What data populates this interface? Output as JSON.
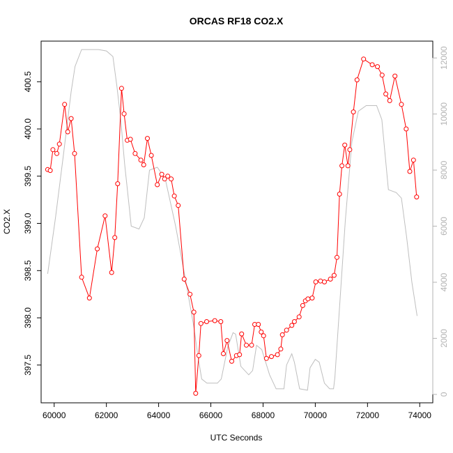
{
  "chart_data": {
    "type": "line",
    "title": "ORCAS RF18 CO2.X",
    "xlabel": "UTC Seconds",
    "ylabel": "CO2.X",
    "xlim": [
      59500,
      74500
    ],
    "ylim": [
      397.1,
      400.93
    ],
    "y2lim": [
      -300,
      12600
    ],
    "x_ticks": [
      60000,
      62000,
      64000,
      66000,
      68000,
      70000,
      72000,
      74000
    ],
    "x_tick_labels": [
      "60000",
      "62000",
      "64000",
      "66000",
      "68000",
      "70000",
      "72000",
      "74000"
    ],
    "y_ticks": [
      397.5,
      398.0,
      398.5,
      399.0,
      399.5,
      400.0,
      400.5
    ],
    "y_tick_labels": [
      "397.5",
      "398.0",
      "398.5",
      "399.0",
      "399.5",
      "400.0",
      "400.5"
    ],
    "y2_ticks": [
      0,
      2000,
      4000,
      6000,
      8000,
      10000,
      12000
    ],
    "y2_tick_labels": [
      "0",
      "2000",
      "4000",
      "6000",
      "8000",
      "10000",
      "12000"
    ],
    "grid": false,
    "legend": "none",
    "colors": {
      "primary": "#ff0000",
      "secondary": "#bebebe",
      "axes": "#000000",
      "right_axis": "#b3b3b3"
    },
    "series": [
      {
        "axis": "left",
        "style": "line+points",
        "color": "#ff0000",
        "x": [
          59750,
          59850,
          59950,
          60100,
          60200,
          60400,
          60520,
          60650,
          60780,
          61050,
          61350,
          61650,
          61950,
          62200,
          62320,
          62430,
          62580,
          62680,
          62800,
          62920,
          63100,
          63320,
          63430,
          63570,
          63720,
          63950,
          64120,
          64230,
          64350,
          64480,
          64600,
          64750,
          64980,
          65200,
          65350,
          65420,
          65540,
          65620,
          65840,
          66150,
          66380,
          66480,
          66620,
          66800,
          66980,
          67100,
          67180,
          67360,
          67560,
          67680,
          67820,
          67930,
          68020,
          68130,
          68320,
          68550,
          68680,
          68740,
          68900,
          69100,
          69200,
          69380,
          69520,
          69620,
          69720,
          69880,
          70020,
          70200,
          70350,
          70580,
          70720,
          70830,
          70930,
          71020,
          71130,
          71250,
          71320,
          71460,
          71600,
          71850,
          72180,
          72380,
          72560,
          72700,
          72850,
          73050,
          73300,
          73480,
          73620,
          73760,
          73880
        ],
        "y": [
          399.57,
          399.56,
          399.78,
          399.74,
          399.84,
          400.26,
          399.97,
          400.11,
          399.74,
          398.43,
          398.21,
          398.73,
          399.08,
          398.48,
          398.85,
          399.42,
          400.43,
          400.16,
          399.88,
          399.89,
          399.74,
          399.67,
          399.62,
          399.9,
          399.72,
          399.41,
          399.52,
          399.47,
          399.5,
          399.47,
          399.29,
          399.19,
          398.41,
          398.25,
          398.06,
          397.2,
          397.6,
          397.94,
          397.96,
          397.97,
          397.96,
          397.62,
          397.76,
          397.54,
          397.6,
          397.61,
          397.83,
          397.71,
          397.71,
          397.93,
          397.93,
          397.85,
          397.81,
          397.57,
          397.59,
          397.61,
          397.67,
          397.82,
          397.87,
          397.92,
          397.96,
          398.01,
          398.13,
          398.18,
          398.2,
          398.21,
          398.38,
          398.39,
          398.38,
          398.41,
          398.45,
          398.64,
          399.31,
          399.61,
          399.83,
          399.61,
          399.78,
          400.18,
          400.52,
          400.74,
          400.68,
          400.66,
          400.57,
          400.37,
          400.3,
          400.56,
          400.26,
          400.0,
          399.55,
          399.67,
          399.28
        ]
      },
      {
        "axis": "right",
        "style": "line",
        "color": "#bebebe",
        "x": [
          59750,
          60050,
          60350,
          60650,
          60800,
          61050,
          61400,
          61700,
          62000,
          62250,
          62400,
          62550,
          62700,
          62850,
          62950,
          63250,
          63450,
          63650,
          63950,
          64250,
          64650,
          65050,
          65350,
          65500,
          65650,
          65850,
          66050,
          66250,
          66400,
          66650,
          66850,
          66950,
          67150,
          67450,
          67600,
          67750,
          67950,
          68250,
          68500,
          68800,
          68900,
          69100,
          69200,
          69400,
          69700,
          69800,
          70000,
          70150,
          70350,
          70550,
          70700,
          70750,
          70900,
          71150,
          71400,
          71650,
          71950,
          72200,
          72350,
          72550,
          72800,
          73100,
          73300,
          73500,
          73700,
          73900
        ],
        "y": [
          4300,
          6300,
          8500,
          10800,
          11700,
          12300,
          12300,
          12300,
          12250,
          12050,
          11000,
          9800,
          8200,
          6900,
          6000,
          5900,
          6300,
          8000,
          8100,
          7700,
          6000,
          4000,
          2400,
          1400,
          550,
          400,
          400,
          400,
          550,
          1700,
          2200,
          2150,
          1000,
          700,
          850,
          1750,
          1600,
          700,
          200,
          200,
          1050,
          1450,
          1150,
          200,
          150,
          950,
          1250,
          1150,
          400,
          200,
          200,
          600,
          2700,
          6200,
          9000,
          10100,
          10300,
          10300,
          10300,
          9800,
          7300,
          7200,
          7000,
          5600,
          4000,
          2800
        ]
      }
    ]
  }
}
